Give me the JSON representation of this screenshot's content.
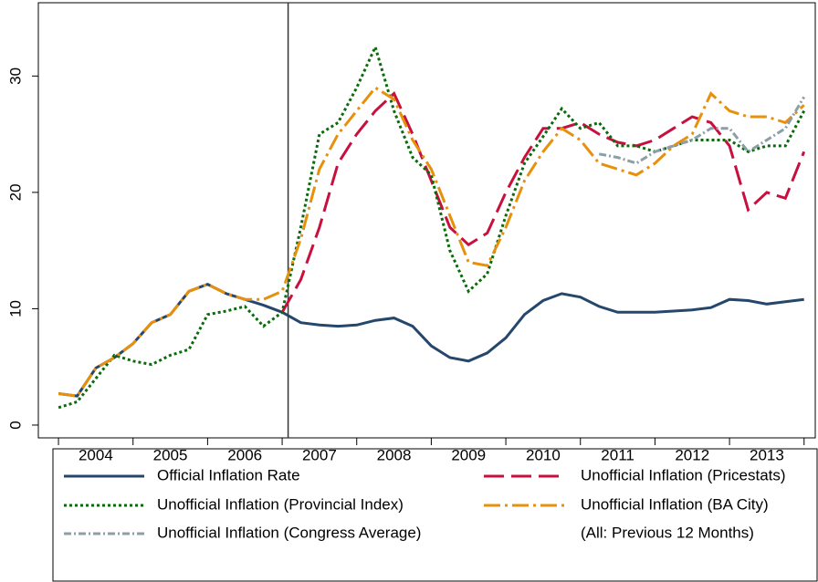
{
  "chart_data": {
    "type": "line",
    "x": [
      2004,
      2004.25,
      2004.5,
      2004.75,
      2005,
      2005.25,
      2005.5,
      2005.75,
      2006,
      2006.25,
      2006.5,
      2006.75,
      2007,
      2007.25,
      2007.5,
      2007.75,
      2008,
      2008.25,
      2008.5,
      2008.75,
      2009,
      2009.25,
      2009.5,
      2009.75,
      2010,
      2010.25,
      2010.5,
      2010.75,
      2011,
      2011.25,
      2011.5,
      2011.75,
      2012,
      2012.25,
      2012.5,
      2012.75,
      2013,
      2013.25,
      2013.5,
      2013.75,
      2014
    ],
    "series": [
      {
        "name": "Official Inflation Rate",
        "color": "#24476b",
        "dash": "none",
        "width": 3,
        "values": [
          2.7,
          2.5,
          4.9,
          5.8,
          7.0,
          8.8,
          9.5,
          11.5,
          12.1,
          11.3,
          10.8,
          10.3,
          9.7,
          8.8,
          8.6,
          8.5,
          8.6,
          9.0,
          9.2,
          8.5,
          6.8,
          5.8,
          5.5,
          6.2,
          7.5,
          9.5,
          10.7,
          11.3,
          11.0,
          10.2,
          9.7,
          9.7,
          9.7,
          9.8,
          9.9,
          10.1,
          10.8,
          10.7,
          10.4,
          10.6,
          10.8
        ]
      },
      {
        "name": "Unofficial Inflation (Pricestats)",
        "color": "#c8103e",
        "dash": "22,8",
        "width": 3,
        "values": [
          null,
          null,
          null,
          null,
          null,
          null,
          null,
          null,
          null,
          null,
          null,
          null,
          9.7,
          12.5,
          17,
          22.5,
          25,
          27,
          28.5,
          25,
          21,
          17,
          15.5,
          16.5,
          20,
          23,
          25.5,
          25.5,
          26,
          25,
          24.3,
          24,
          24.5,
          25.5,
          26.5,
          26,
          24,
          18.5,
          20,
          19.5,
          23.5
        ]
      },
      {
        "name": "Unofficial Inflation (Provincial Index)",
        "color": "#0a6b0a",
        "dash": "3,3",
        "width": 3,
        "values": [
          1.5,
          2.0,
          4.0,
          6.0,
          5.5,
          5.2,
          6.0,
          6.5,
          9.5,
          9.8,
          10.2,
          8.5,
          9.7,
          17,
          25,
          26,
          29,
          32.5,
          27,
          23,
          21.5,
          15,
          11.5,
          13,
          18,
          22.5,
          24.8,
          27.2,
          25.5,
          26,
          24,
          24,
          23.5,
          24,
          24.5,
          24.5,
          24.5,
          23.5,
          24,
          24,
          27
        ]
      },
      {
        "name": "Unofficial Inflation (BA City)",
        "color": "#e8900c",
        "dash": "18,5,3,5",
        "width": 3,
        "values": [
          2.7,
          2.5,
          4.9,
          5.8,
          7.0,
          8.8,
          9.5,
          11.5,
          12.1,
          11.3,
          10.8,
          10.8,
          11.5,
          16,
          22,
          25,
          27,
          29,
          28,
          24.5,
          22,
          18,
          14,
          13.7,
          17,
          21,
          23.5,
          25.5,
          24.5,
          22.5,
          22,
          21.5,
          22.5,
          24,
          25,
          28.5,
          27,
          26.5,
          26.5,
          26,
          27.5
        ]
      },
      {
        "name": "Unofficial Inflation (Congress Average)",
        "color": "#8c9ea8",
        "dash": "8,3,2,3",
        "width": 3,
        "values": [
          null,
          null,
          null,
          null,
          null,
          null,
          null,
          null,
          null,
          null,
          null,
          null,
          null,
          null,
          null,
          null,
          null,
          null,
          null,
          null,
          null,
          null,
          null,
          null,
          null,
          null,
          null,
          null,
          null,
          23.3,
          23,
          22.5,
          23.5,
          24,
          24.5,
          25.5,
          25.5,
          23.5,
          24.5,
          25.5,
          28.2
        ]
      }
    ],
    "legend_note": "(All: Previous 12 Months)",
    "xlim": [
      2003.73,
      2014.15
    ],
    "xticks": [
      {
        "value": 2004.5,
        "label": "2004"
      },
      {
        "value": 2005.5,
        "label": "2005"
      },
      {
        "value": 2006.5,
        "label": "2006"
      },
      {
        "value": 2007.5,
        "label": "2007"
      },
      {
        "value": 2008.5,
        "label": "2008"
      },
      {
        "value": 2009.5,
        "label": "2009"
      },
      {
        "value": 2010.5,
        "label": "2010"
      },
      {
        "value": 2011.5,
        "label": "2011"
      },
      {
        "value": 2012.5,
        "label": "2012"
      },
      {
        "value": 2013.5,
        "label": "2013"
      }
    ],
    "x_minor_ticks": [
      2004,
      2005,
      2006,
      2007,
      2008,
      2009,
      2010,
      2011,
      2012,
      2013,
      2014
    ],
    "vline": 2007.08,
    "ylim": [
      -1.1,
      36.3
    ],
    "yticks": [
      0,
      10,
      20,
      30
    ]
  }
}
